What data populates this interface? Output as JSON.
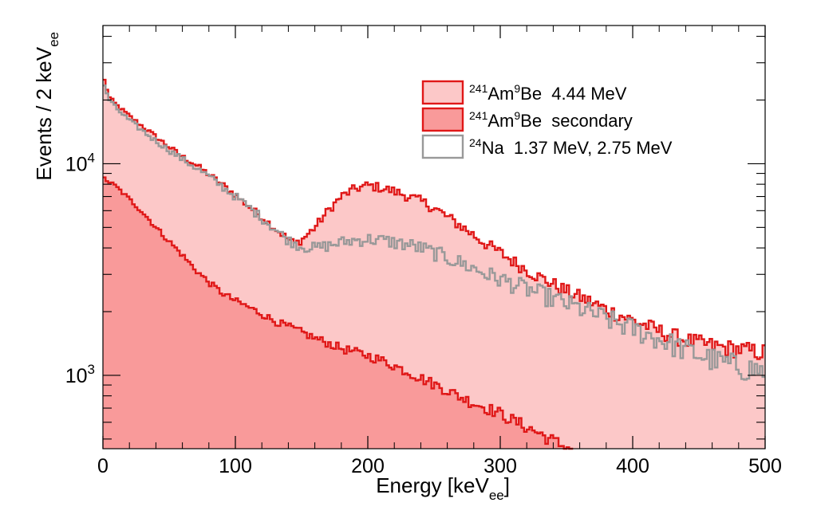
{
  "chart_data": {
    "type": "histogram",
    "xlabel": {
      "main": "Energy [keV",
      "sub": "ee",
      "close": "]"
    },
    "ylabel": {
      "main": "Events / 2 keV",
      "sub": "ee"
    },
    "xlim": [
      0,
      500
    ],
    "ylim": [
      450,
      45000
    ],
    "yscale": "log",
    "x_ticks": [
      "0",
      "100",
      "200",
      "300",
      "400",
      "500"
    ],
    "y_ticks": [
      {
        "value": 1000,
        "base": "10",
        "exp": "3"
      },
      {
        "value": 10000,
        "base": "10",
        "exp": "4"
      }
    ],
    "legend_position": "top-right",
    "legend": [
      {
        "sup1": "241",
        "el1": "Am",
        "sup2": "9",
        "el2": "Be",
        "text": "  4.44 MeV"
      },
      {
        "sup1": "241",
        "el1": "Am",
        "sup2": "9",
        "el2": "Be",
        "text": "  secondary"
      },
      {
        "sup1": "24",
        "el1": "Na",
        "sup2": "",
        "el2": "",
        "text": "  1.37 MeV, 2.75 MeV"
      }
    ],
    "series": [
      {
        "key": "amBe_444",
        "color_line": "#e01818",
        "color_fill": "#fcc8c8",
        "points": [
          [
            0,
            26000
          ],
          [
            5,
            20500
          ],
          [
            10,
            19000
          ],
          [
            20,
            16800
          ],
          [
            30,
            15000
          ],
          [
            40,
            13400
          ],
          [
            50,
            12000
          ],
          [
            60,
            10800
          ],
          [
            70,
            9900
          ],
          [
            80,
            8900
          ],
          [
            90,
            8000
          ],
          [
            100,
            7100
          ],
          [
            110,
            6300
          ],
          [
            120,
            5600
          ],
          [
            130,
            4950
          ],
          [
            140,
            4400
          ],
          [
            145,
            4200
          ],
          [
            150,
            4350
          ],
          [
            160,
            5000
          ],
          [
            170,
            6000
          ],
          [
            180,
            7000
          ],
          [
            190,
            7600
          ],
          [
            200,
            7900
          ],
          [
            210,
            7700
          ],
          [
            220,
            7400
          ],
          [
            230,
            7050
          ],
          [
            240,
            6650
          ],
          [
            250,
            6200
          ],
          [
            260,
            5600
          ],
          [
            270,
            5100
          ],
          [
            280,
            4600
          ],
          [
            290,
            4150
          ],
          [
            300,
            3800
          ],
          [
            310,
            3450
          ],
          [
            320,
            3150
          ],
          [
            330,
            2900
          ],
          [
            340,
            2700
          ],
          [
            350,
            2500
          ],
          [
            360,
            2350
          ],
          [
            370,
            2200
          ],
          [
            380,
            2050
          ],
          [
            390,
            1930
          ],
          [
            400,
            1820
          ],
          [
            410,
            1720
          ],
          [
            420,
            1620
          ],
          [
            430,
            1540
          ],
          [
            440,
            1470
          ],
          [
            450,
            1420
          ],
          [
            460,
            1380
          ],
          [
            470,
            1350
          ],
          [
            480,
            1330
          ],
          [
            490,
            1300
          ],
          [
            500,
            1280
          ]
        ]
      },
      {
        "key": "amBe_secondary",
        "color_line": "#e01818",
        "color_fill": "#f99a9a",
        "points": [
          [
            0,
            8600
          ],
          [
            10,
            7800
          ],
          [
            20,
            6800
          ],
          [
            30,
            5900
          ],
          [
            40,
            5000
          ],
          [
            50,
            4300
          ],
          [
            60,
            3700
          ],
          [
            70,
            3150
          ],
          [
            80,
            2750
          ],
          [
            90,
            2450
          ],
          [
            100,
            2250
          ],
          [
            110,
            2100
          ],
          [
            120,
            1950
          ],
          [
            130,
            1800
          ],
          [
            140,
            1700
          ],
          [
            150,
            1600
          ],
          [
            160,
            1500
          ],
          [
            170,
            1420
          ],
          [
            180,
            1340
          ],
          [
            190,
            1290
          ],
          [
            200,
            1240
          ],
          [
            210,
            1180
          ],
          [
            220,
            1110
          ],
          [
            230,
            1040
          ],
          [
            240,
            970
          ],
          [
            250,
            910
          ],
          [
            260,
            850
          ],
          [
            270,
            790
          ],
          [
            280,
            740
          ],
          [
            290,
            700
          ],
          [
            300,
            660
          ],
          [
            310,
            610
          ],
          [
            320,
            570
          ],
          [
            330,
            530
          ],
          [
            340,
            490
          ],
          [
            350,
            455
          ],
          [
            355,
            450
          ]
        ]
      },
      {
        "key": "na24",
        "color_line": "#999999",
        "color_fill": "none",
        "points": [
          [
            0,
            24000
          ],
          [
            5,
            20000
          ],
          [
            10,
            18300
          ],
          [
            20,
            16000
          ],
          [
            30,
            14300
          ],
          [
            40,
            12800
          ],
          [
            50,
            11600
          ],
          [
            60,
            10500
          ],
          [
            70,
            9600
          ],
          [
            80,
            8700
          ],
          [
            90,
            7800
          ],
          [
            100,
            7000
          ],
          [
            110,
            6250
          ],
          [
            120,
            5550
          ],
          [
            130,
            4900
          ],
          [
            140,
            4350
          ],
          [
            150,
            4050
          ],
          [
            160,
            4000
          ],
          [
            170,
            4100
          ],
          [
            180,
            4250
          ],
          [
            190,
            4350
          ],
          [
            200,
            4400
          ],
          [
            210,
            4350
          ],
          [
            220,
            4250
          ],
          [
            230,
            4150
          ],
          [
            240,
            4000
          ],
          [
            250,
            3800
          ],
          [
            260,
            3600
          ],
          [
            270,
            3400
          ],
          [
            280,
            3200
          ],
          [
            290,
            3000
          ],
          [
            300,
            2850
          ],
          [
            310,
            2700
          ],
          [
            320,
            2560
          ],
          [
            330,
            2430
          ],
          [
            340,
            2300
          ],
          [
            350,
            2180
          ],
          [
            360,
            2070
          ],
          [
            370,
            1960
          ],
          [
            380,
            1850
          ],
          [
            390,
            1750
          ],
          [
            400,
            1660
          ],
          [
            410,
            1570
          ],
          [
            420,
            1480
          ],
          [
            430,
            1400
          ],
          [
            440,
            1320
          ],
          [
            450,
            1250
          ],
          [
            460,
            1190
          ],
          [
            470,
            1140
          ],
          [
            480,
            1100
          ],
          [
            490,
            1070
          ],
          [
            500,
            1050
          ]
        ]
      }
    ]
  }
}
